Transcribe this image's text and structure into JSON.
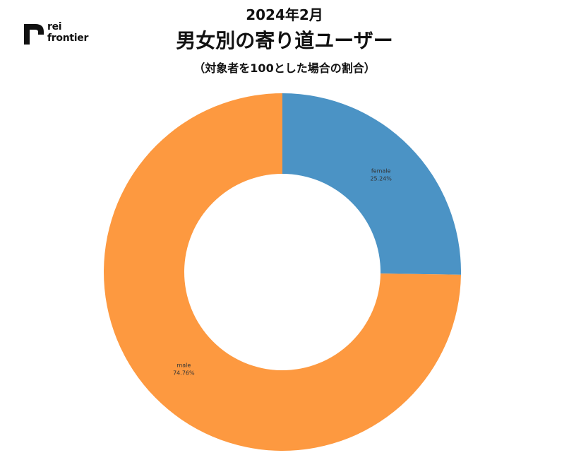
{
  "logo": {
    "line1": "rei",
    "line2": "frontier",
    "icon": "rf-logo-icon"
  },
  "header": {
    "date": "2024年2月",
    "title": "男女別の寄り道ユーザー",
    "subtitle": "（対象者を100とした場合の割合）"
  },
  "chart_data": {
    "type": "pie",
    "donut": true,
    "title": "男女別の寄り道ユーザー",
    "subtitle": "（対象者を100とした場合の割合）",
    "slices": [
      {
        "label": "female",
        "value": 25.24,
        "display": "25.24%",
        "color": "#4b93c5"
      },
      {
        "label": "male",
        "value": 74.76,
        "display": "74.76%",
        "color": "#fd9940"
      }
    ],
    "start": "12 o'clock",
    "direction": "clockwise",
    "legend": "none"
  }
}
